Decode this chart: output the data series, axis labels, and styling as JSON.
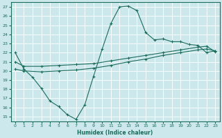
{
  "xlabel": "Humidex (Indice chaleur)",
  "bg_color": "#cce8ec",
  "line_color": "#1a6b5a",
  "grid_color": "#ffffff",
  "xlim": [
    -0.5,
    23.5
  ],
  "ylim": [
    14.5,
    27.5
  ],
  "xticks": [
    0,
    1,
    2,
    3,
    4,
    5,
    6,
    7,
    8,
    9,
    10,
    11,
    12,
    13,
    14,
    15,
    16,
    17,
    18,
    19,
    20,
    21,
    22,
    23
  ],
  "yticks": [
    15,
    16,
    17,
    18,
    19,
    20,
    21,
    22,
    23,
    24,
    25,
    26,
    27
  ],
  "line1_x": [
    0,
    1,
    2,
    3,
    4,
    5,
    6,
    7,
    8,
    9,
    10,
    11,
    12,
    13,
    14,
    15,
    16,
    17,
    18,
    19,
    20,
    21,
    22,
    23
  ],
  "line1_y": [
    22.0,
    20.2,
    19.3,
    18.1,
    16.7,
    16.1,
    15.2,
    14.7,
    16.3,
    19.4,
    22.4,
    25.2,
    27.0,
    27.1,
    26.6,
    24.2,
    23.4,
    23.5,
    23.2,
    23.2,
    22.9,
    22.8,
    22.0,
    22.2
  ],
  "line2_x": [
    0,
    1,
    3,
    5,
    7,
    9,
    11,
    13,
    15,
    17,
    19,
    21,
    22,
    23
  ],
  "line2_y": [
    21.0,
    20.5,
    20.5,
    20.6,
    20.7,
    20.8,
    21.1,
    21.4,
    21.7,
    22.0,
    22.3,
    22.6,
    22.7,
    22.1
  ],
  "line3_x": [
    0,
    1,
    3,
    5,
    7,
    9,
    11,
    13,
    15,
    17,
    19,
    21,
    22,
    23
  ],
  "line3_y": [
    20.2,
    20.0,
    19.9,
    20.0,
    20.1,
    20.3,
    20.6,
    21.0,
    21.3,
    21.7,
    22.0,
    22.3,
    22.4,
    22.2
  ]
}
